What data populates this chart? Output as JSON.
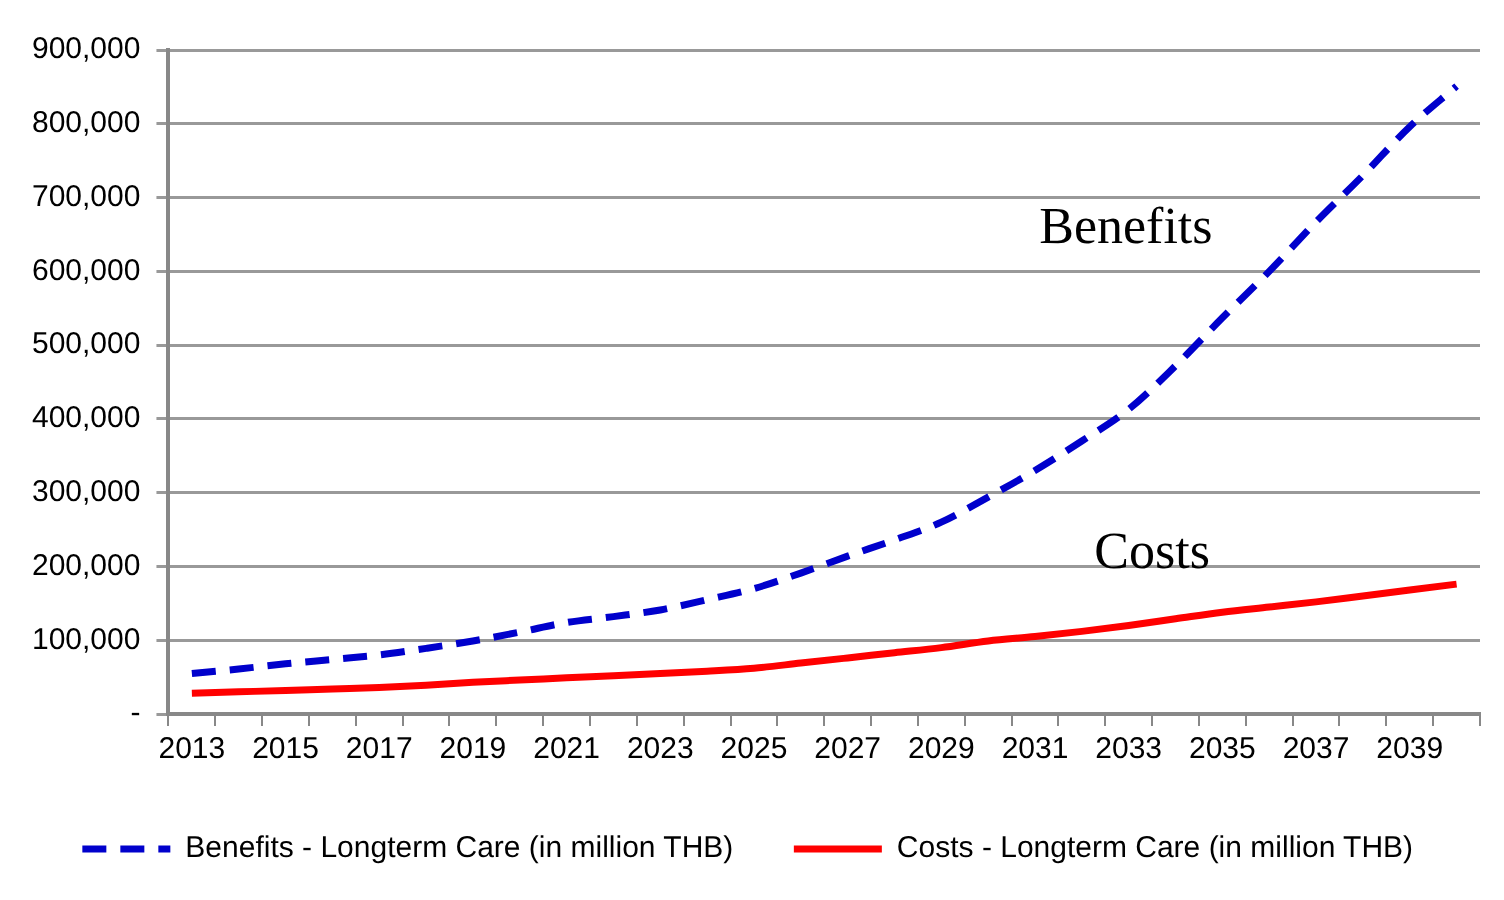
{
  "chart_data": {
    "type": "line",
    "categories": [
      "2013",
      null,
      "2015",
      null,
      "2017",
      null,
      "2019",
      null,
      "2021",
      null,
      "2023",
      null,
      "2025",
      null,
      "2027",
      null,
      "2029",
      null,
      "2031",
      null,
      "2033",
      null,
      "2035",
      null,
      "2037",
      null,
      "2039",
      null
    ],
    "series": [
      {
        "name": "Benefits - Longterm Care (in million THB)",
        "color": "#0000cc",
        "line_style": "dashed",
        "values": [
          55000,
          61000,
          68000,
          74000,
          80000,
          89000,
          99000,
          111000,
          124000,
          132000,
          141000,
          155000,
          170000,
          191000,
          214000,
          236000,
          260000,
          294000,
          330000,
          370000,
          413000,
          472000,
          537000,
          600000,
          667000,
          730000,
          796000,
          851000
        ]
      },
      {
        "name": "Costs - Longterm Care (in million THB)",
        "color": "#ff0000",
        "line_style": "solid",
        "values": [
          28000,
          30000,
          32000,
          34000,
          36000,
          39000,
          43000,
          46000,
          49000,
          52000,
          55000,
          58000,
          62000,
          69000,
          76000,
          83000,
          90000,
          99000,
          105000,
          112000,
          120000,
          129000,
          138000,
          145000,
          152000,
          160000,
          168000,
          176000
        ]
      }
    ],
    "ylim": [
      0,
      900000
    ],
    "yticks": [
      {
        "value": 0,
        "label": "-"
      },
      {
        "value": 100000,
        "label": "100,000"
      },
      {
        "value": 200000,
        "label": "200,000"
      },
      {
        "value": 300000,
        "label": "300,000"
      },
      {
        "value": 400000,
        "label": "400,000"
      },
      {
        "value": 500000,
        "label": "500,000"
      },
      {
        "value": 600000,
        "label": "600,000"
      },
      {
        "value": 700000,
        "label": "700,000"
      },
      {
        "value": 800000,
        "label": "800,000"
      },
      {
        "value": 900000,
        "label": "900,000"
      }
    ],
    "grid": "y",
    "legend": "bottom",
    "marker": "none",
    "annotations": [
      "Benefits",
      "Costs"
    ]
  }
}
